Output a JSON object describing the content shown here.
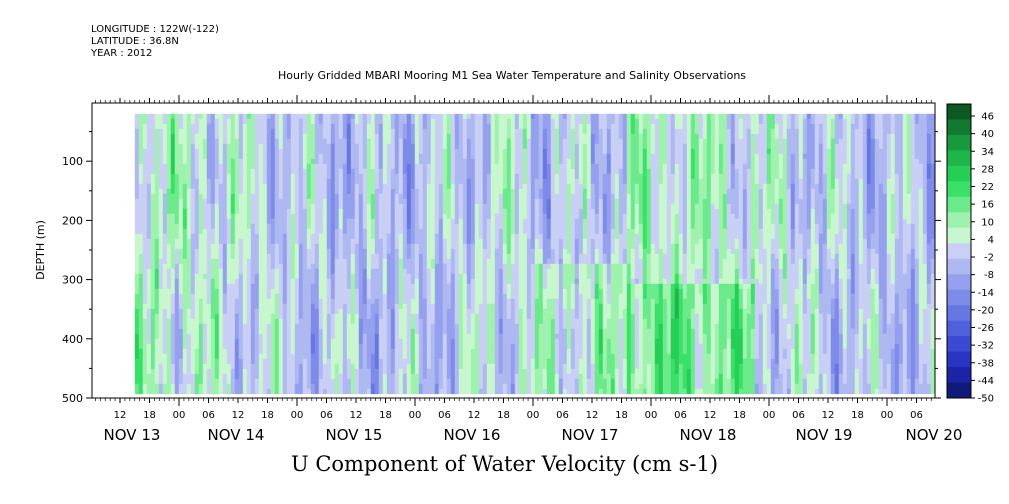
{
  "header": {
    "longitude": "LONGITUDE : 122W(-122)",
    "latitude": "LATITUDE : 36.8N",
    "year": "YEAR : 2012",
    "title": "Hourly Gridded MBARI Mooring M1 Sea Water Temperature and Salinity Observations"
  },
  "chart_data": {
    "type": "heatmap",
    "title": "Hourly Gridded MBARI Mooring M1 Sea Water Temperature and Salinity Observations",
    "xlabel": "",
    "ylabel": "DEPTH (m)",
    "bottom_title": "U Component of Water Velocity (cm s-1)",
    "y_ticks": [
      100,
      200,
      300,
      400,
      500
    ],
    "ylim": [
      500,
      20
    ],
    "hour_ticks": [
      "12",
      "18",
      "00",
      "06",
      "12",
      "18",
      "00",
      "06",
      "12",
      "18",
      "00",
      "06",
      "12",
      "18",
      "00",
      "06",
      "12",
      "18",
      "00",
      "06",
      "12",
      "18",
      "00",
      "06",
      "12",
      "18",
      "00",
      "06"
    ],
    "day_labels": [
      "NOV 13",
      "NOV 14",
      "NOV 15",
      "NOV 16",
      "NOV 17",
      "NOV 18",
      "NOV 19",
      "NOV 20"
    ],
    "colorbar_labels": [
      "46",
      "40",
      "34",
      "28",
      "22",
      "16",
      "10",
      "4",
      "-2",
      "-8",
      "-14",
      "-20",
      "-26",
      "-32",
      "-38",
      "-44",
      "-50"
    ],
    "colorbar_range": [
      -50,
      52
    ],
    "data_depth_range": [
      20,
      485
    ],
    "data_time_range_hours_from_nov13_12": [
      3,
      171
    ],
    "colors": {
      "strong_positive": "#0f6e2a",
      "positive": "#22d84e",
      "weak_positive": "#9bf0a6",
      "near_zero": "#c8d3f4",
      "weak_negative": "#a6b0f2",
      "negative": "#5f73e6",
      "strong_negative": "#1a2aa6"
    }
  }
}
